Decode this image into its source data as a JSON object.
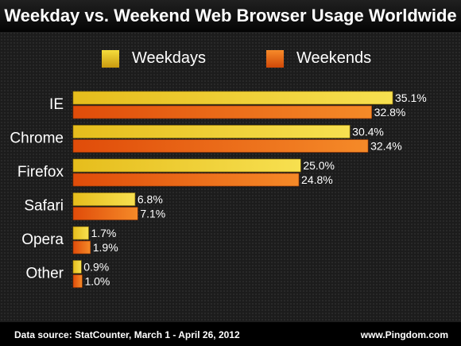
{
  "chart_data": {
    "type": "bar",
    "orientation": "horizontal",
    "title": "Weekday vs. Weekend Web Browser Usage Worldwide",
    "categories": [
      "IE",
      "Chrome",
      "Firefox",
      "Safari",
      "Opera",
      "Other"
    ],
    "series": [
      {
        "name": "Weekdays",
        "values": [
          35.1,
          30.4,
          25.0,
          6.8,
          1.7,
          0.9
        ],
        "labels": [
          "35.1%",
          "30.4%",
          "25.0%",
          "6.8%",
          "1.7%",
          "0.9%"
        ],
        "color": "#e8c020"
      },
      {
        "name": "Weekends",
        "values": [
          32.8,
          32.4,
          24.8,
          7.1,
          1.9,
          1.0
        ],
        "labels": [
          "32.8%",
          "32.4%",
          "24.8%",
          "7.1%",
          "1.9%",
          "1.0%"
        ],
        "color": "#e05a10"
      }
    ],
    "xlim": [
      0,
      35.1
    ],
    "legend_position": "top",
    "grid": false
  },
  "footer": {
    "source": "Data source: StatCounter, March 1 - April 26, 2012",
    "url": "www.Pingdom.com"
  }
}
